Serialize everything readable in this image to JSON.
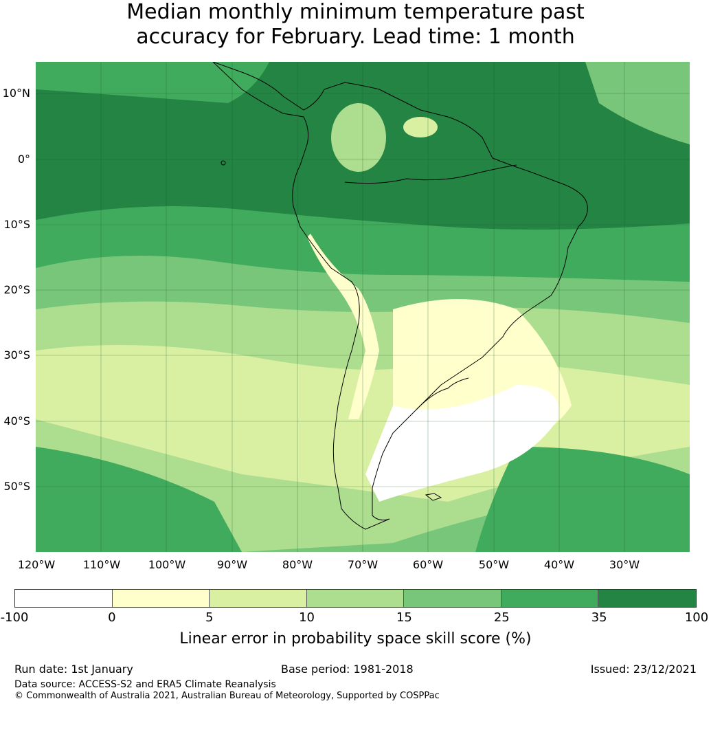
{
  "title": {
    "line1": "Median monthly minimum temperature past",
    "line2": "accuracy for February. Lead time: 1 month"
  },
  "map": {
    "lat_labels": [
      "10°N",
      "0°",
      "10°S",
      "20°S",
      "30°S",
      "40°S",
      "50°S"
    ],
    "lon_labels": [
      "120°W",
      "110°W",
      "100°W",
      "90°W",
      "80°W",
      "70°W",
      "60°W",
      "50°W",
      "40°W",
      "30°W"
    ]
  },
  "colorbar": {
    "ticks": [
      "-100",
      "0",
      "5",
      "10",
      "15",
      "25",
      "35",
      "100"
    ],
    "colors": [
      "#ffffff",
      "#ffffcc",
      "#d9f0a3",
      "#addd8e",
      "#78c679",
      "#41ab5d",
      "#238443"
    ],
    "label": "Linear error in probability space skill score (%)"
  },
  "footer": {
    "run_date": "Run date: 1st January",
    "base_period": "Base period: 1981-2018",
    "issued": "Issued: 23/12/2021",
    "data_source": "Data source: ACCESS-S2 and ERA5 Climate Reanalysis",
    "copyright": "© Commonwealth of Australia 2021, Australian Bureau of Meteorology, Supported by COSPPac"
  }
}
